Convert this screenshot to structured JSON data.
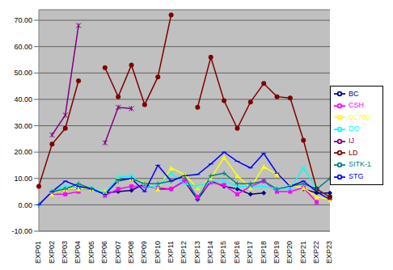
{
  "chart_data": {
    "type": "line",
    "categories": [
      "EXP01",
      "EXP02",
      "EXP03",
      "EXP04",
      "EXP05",
      "EXP06",
      "EXP07",
      "EXP08",
      "EXP09",
      "EXP10",
      "EXP11",
      "EXP12",
      "EXP13",
      "EXP14",
      "EXP15",
      "EXP16",
      "EXP17",
      "EXP18",
      "EXP19",
      "EXP20",
      "EXP21",
      "EXP22",
      "EXP23"
    ],
    "ylim": [
      -10,
      74
    ],
    "yticks": [
      {
        "value": -10,
        "label": "-10.00"
      },
      {
        "value": 0,
        "label": "0.00"
      },
      {
        "value": 10,
        "label": "10.00"
      },
      {
        "value": 20,
        "label": "20.00"
      },
      {
        "value": 30,
        "label": "30.00"
      },
      {
        "value": 40,
        "label": "40.00"
      },
      {
        "value": 50,
        "label": "50.00"
      },
      {
        "value": 60,
        "label": "60.00"
      },
      {
        "value": 70,
        "label": "70.00"
      }
    ],
    "grid": true,
    "legend": "right",
    "series": [
      {
        "name": "BC",
        "color": "#000080",
        "marker": "diamond",
        "values": [
          null,
          4,
          6,
          6,
          6,
          4.5,
          5,
          5.5,
          8,
          6,
          6,
          9,
          2,
          9,
          7,
          6,
          4,
          4.5,
          null,
          null,
          6,
          4.5,
          4.5
        ]
      },
      {
        "name": "CSH",
        "color": "#ff00ff",
        "marker": "square",
        "values": [
          null,
          4,
          4,
          5,
          null,
          3.5,
          6,
          7,
          7,
          6.5,
          6,
          9,
          3,
          8.5,
          7.5,
          4,
          7,
          9,
          5,
          5,
          6.5,
          1,
          null
        ]
      },
      {
        "name": "D1700",
        "color": "#ffff00",
        "marker": "triangle",
        "values": [
          null,
          4,
          6,
          6,
          6,
          5,
          9.5,
          10,
          8.5,
          6,
          14,
          11.5,
          6.5,
          10,
          18,
          11,
          6.5,
          14.5,
          11.5,
          7.5,
          6.5,
          3,
          2
        ]
      },
      {
        "name": "DO",
        "color": "#00ffff",
        "marker": "cross",
        "values": [
          null,
          5,
          7,
          6.5,
          6.5,
          4.5,
          10.5,
          11,
          7,
          7,
          12,
          8,
          7,
          9,
          9,
          7,
          7,
          7,
          6,
          6,
          14,
          6,
          3
        ]
      },
      {
        "name": "IJ",
        "color": "#800080",
        "marker": "star",
        "values": [
          null,
          26.5,
          34,
          68,
          null,
          23.5,
          37,
          36.5,
          null,
          null,
          null,
          null,
          null,
          null,
          null,
          null,
          null,
          null,
          null,
          null,
          null,
          null,
          null
        ]
      },
      {
        "name": "LD",
        "color": "#800000",
        "marker": "circle",
        "values": [
          7,
          23,
          29,
          47,
          null,
          52,
          41,
          53,
          38,
          48.5,
          72,
          null,
          37,
          56,
          39.5,
          29,
          39,
          46,
          41,
          40.5,
          24.5,
          6,
          3
        ]
      },
      {
        "name": "SITK-1",
        "color": "#008080",
        "marker": "plus",
        "values": [
          0,
          5,
          6,
          8,
          6,
          4,
          9,
          10,
          8,
          8,
          9,
          11,
          2,
          11,
          12,
          8,
          8,
          9,
          6,
          7,
          8,
          6,
          10
        ]
      },
      {
        "name": "STG",
        "color": "#0000ff",
        "marker": "dash",
        "values": [
          0,
          5,
          9,
          7,
          6,
          4,
          9.5,
          10,
          5,
          15,
          9,
          11,
          11.5,
          15.5,
          20,
          16.5,
          14,
          19.5,
          12,
          7,
          9,
          5,
          2
        ]
      }
    ]
  }
}
